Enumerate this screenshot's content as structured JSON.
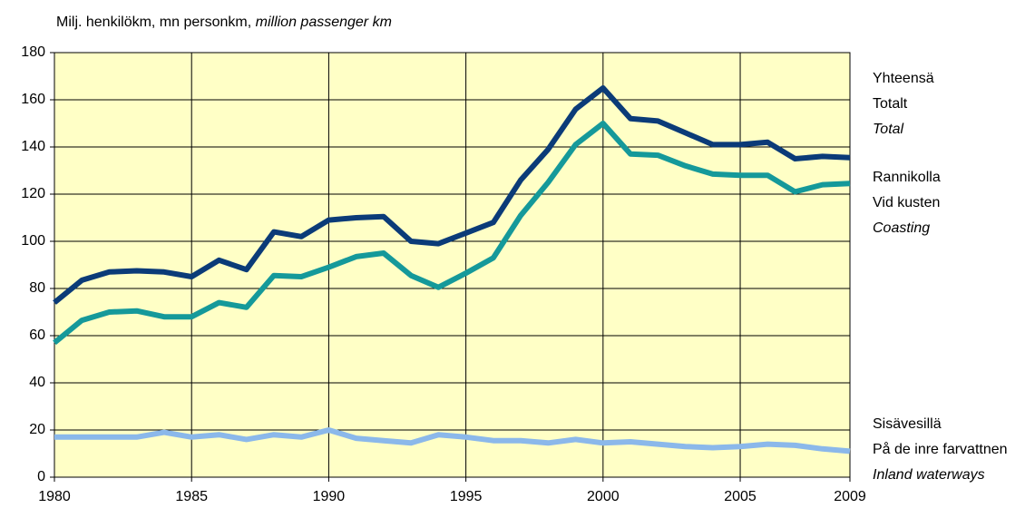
{
  "chart_data": {
    "type": "line",
    "y_axis_label": "Milj. henkilökm, mn personkm, ",
    "y_axis_label_en": "million passenger km",
    "x": [
      1980,
      1981,
      1982,
      1983,
      1984,
      1985,
      1986,
      1987,
      1988,
      1989,
      1990,
      1991,
      1992,
      1993,
      1994,
      1995,
      1996,
      1997,
      1998,
      1999,
      2000,
      2001,
      2002,
      2003,
      2004,
      2005,
      2006,
      2007,
      2008,
      2009
    ],
    "xlim": [
      1980,
      2009
    ],
    "xticks": [
      1980,
      1985,
      1990,
      1995,
      2000,
      2005,
      2009
    ],
    "ylim": [
      0,
      180
    ],
    "yticks": [
      0,
      20,
      40,
      60,
      80,
      100,
      120,
      140,
      160,
      180
    ],
    "grid": true,
    "background": "#ffffc6",
    "series": [
      {
        "name": "Yhteensä",
        "name_sv": "Totalt",
        "name_en": "Total",
        "color": "#0b3b78",
        "values": [
          74,
          83.5,
          87,
          87.5,
          87,
          85,
          92,
          88,
          104,
          102,
          109,
          110,
          110.5,
          100,
          99,
          103.5,
          108,
          126,
          139,
          156,
          165,
          152,
          151,
          146,
          141,
          141,
          142,
          135,
          136,
          135.5
        ]
      },
      {
        "name": "Rannikolla",
        "name_sv": "Vid kusten",
        "name_en": "Coasting",
        "color": "#15999a",
        "values": [
          57,
          66.5,
          70,
          70.5,
          68,
          68,
          74,
          72,
          85.5,
          85,
          89,
          93.5,
          95,
          85.5,
          80.5,
          86.5,
          93,
          111,
          125,
          141,
          150,
          137,
          136.5,
          132,
          128.5,
          128,
          128,
          121,
          124,
          124.5
        ]
      },
      {
        "name": "Sisävesillä",
        "name_sv": "På de inre farvattnen",
        "name_en": "Inland waterways",
        "color": "#8bb8ea",
        "values": [
          17,
          17,
          17,
          17,
          19,
          17,
          18,
          16,
          18,
          17,
          20,
          16.5,
          15.5,
          14.5,
          18,
          17,
          15.5,
          15.5,
          14.5,
          16,
          14.5,
          15,
          14,
          13,
          12.5,
          13,
          14,
          13.5,
          12,
          11
        ]
      }
    ]
  }
}
